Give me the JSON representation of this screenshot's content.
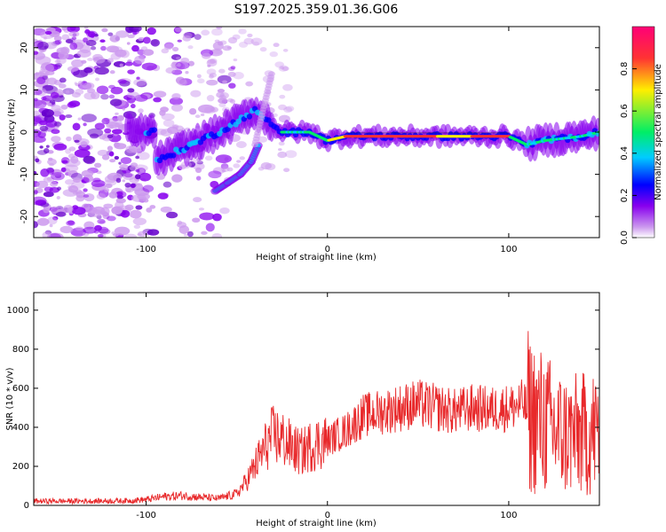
{
  "figure_title": "S197.2025.359.01.36.G06",
  "colors": {
    "background": "#ffffff",
    "axes": "#000000",
    "snr_line": "#e8292b",
    "colormap": [
      "#ffffff",
      "#cc99ee",
      "#8800ee",
      "#0000ff",
      "#00ccff",
      "#00ee66",
      "#ffee00",
      "#ff3333",
      "#ff0077"
    ]
  },
  "chart_data": [
    {
      "type": "heatmap",
      "title": "",
      "xlabel": "Height of straight line (km)",
      "ylabel": "Frequency (Hz)",
      "xlim": [
        -162,
        150
      ],
      "ylim": [
        -25,
        25
      ],
      "xticks": [
        -100,
        0,
        100
      ],
      "yticks": [
        -20,
        -10,
        0,
        10,
        20
      ],
      "colorbar": {
        "label": "Normalized spectral amplitude",
        "range": [
          0,
          1
        ],
        "ticks": [
          0.0,
          0.2,
          0.4,
          0.6,
          0.8
        ]
      },
      "ridge": {
        "description_points_x": [
          -95,
          -80,
          -60,
          -40,
          -25,
          -10,
          0,
          10,
          20,
          40,
          60,
          80,
          100,
          110,
          120,
          140,
          150
        ],
        "description_points_freq": [
          -7,
          -4,
          0,
          5,
          0,
          0,
          -2,
          -1,
          -1,
          -1,
          -1,
          -1,
          -1,
          -3,
          -2,
          -1,
          0
        ]
      },
      "branch": {
        "x": [
          -62,
          -55,
          -48,
          -42,
          -38
        ],
        "freq": [
          -14,
          -12,
          -10,
          -7,
          -3
        ]
      }
    },
    {
      "type": "line",
      "title": "",
      "xlabel": "Height of straight line (km)",
      "ylabel": "SNR (10 * v/v)",
      "xlim": [
        -162,
        150
      ],
      "ylim": [
        0,
        1090
      ],
      "xticks": [
        -100,
        0,
        100
      ],
      "yticks": [
        0,
        200,
        400,
        600,
        800,
        1000
      ],
      "series": [
        {
          "name": "SNR",
          "x": [
            -162,
            -150,
            -140,
            -130,
            -120,
            -110,
            -100,
            -90,
            -80,
            -70,
            -60,
            -50,
            -45,
            -40,
            -35,
            -30,
            -25,
            -20,
            -15,
            -10,
            -5,
            0,
            5,
            10,
            15,
            20,
            30,
            40,
            50,
            60,
            70,
            80,
            90,
            100,
            108,
            112,
            118,
            125,
            130,
            135,
            140,
            145,
            150
          ],
          "y": [
            22,
            22,
            22,
            22,
            23,
            24,
            30,
            45,
            50,
            42,
            35,
            60,
            120,
            200,
            290,
            360,
            340,
            300,
            270,
            300,
            320,
            330,
            360,
            380,
            420,
            460,
            480,
            500,
            520,
            500,
            480,
            500,
            490,
            500,
            520,
            460,
            430,
            390,
            360,
            360,
            360,
            370,
            380
          ]
        }
      ]
    }
  ]
}
